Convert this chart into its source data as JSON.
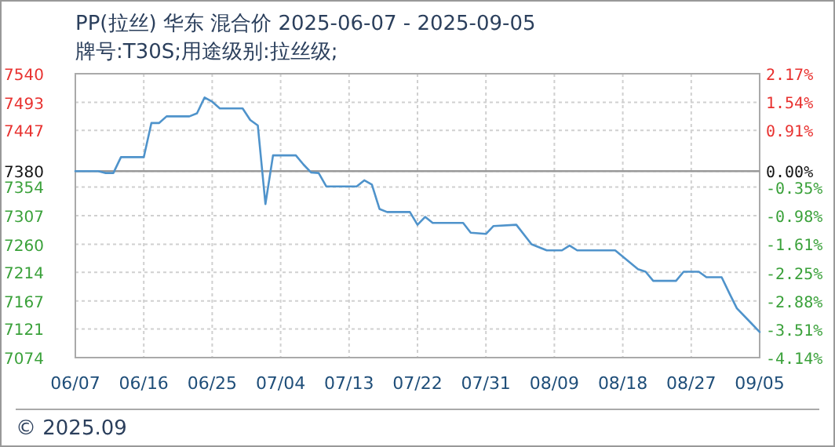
{
  "chart_data": {
    "type": "line",
    "title": "PP(拉丝) 华东 混合价 2025-06-07 - 2025-09-05",
    "subtitle": "牌号:T30S;用途级别:拉丝级;",
    "x": [
      "2025-06-07",
      "2025-06-10",
      "2025-06-11",
      "2025-06-12",
      "2025-06-13",
      "2025-06-16",
      "2025-06-17",
      "2025-06-18",
      "2025-06-19",
      "2025-06-22",
      "2025-06-23",
      "2025-06-24",
      "2025-06-25",
      "2025-06-26",
      "2025-06-29",
      "2025-06-30",
      "2025-07-01",
      "2025-07-02",
      "2025-07-03",
      "2025-07-06",
      "2025-07-07",
      "2025-07-08",
      "2025-07-09",
      "2025-07-10",
      "2025-07-14",
      "2025-07-15",
      "2025-07-16",
      "2025-07-17",
      "2025-07-18",
      "2025-07-21",
      "2025-07-22",
      "2025-07-23",
      "2025-07-24",
      "2025-07-28",
      "2025-07-29",
      "2025-07-31",
      "2025-08-01",
      "2025-08-04",
      "2025-08-06",
      "2025-08-08",
      "2025-08-10",
      "2025-08-11",
      "2025-08-12",
      "2025-08-17",
      "2025-08-20",
      "2025-08-21",
      "2025-08-22",
      "2025-08-25",
      "2025-08-26",
      "2025-08-28",
      "2025-08-29",
      "2025-08-31",
      "2025-09-01",
      "2025-09-02",
      "2025-09-04",
      "2025-09-05"
    ],
    "series": [
      {
        "color": "#4f93cb",
        "values": [
          7380,
          7380,
          7377,
          7377,
          7403,
          7403,
          7459,
          7459,
          7470,
          7470,
          7475,
          7501,
          7494,
          7483,
          7483,
          7464,
          7455,
          7326,
          7406,
          7406,
          7391,
          7378,
          7377,
          7355,
          7355,
          7365,
          7358,
          7318,
          7313,
          7313,
          7292,
          7305,
          7295,
          7295,
          7279,
          7277,
          7290,
          7292,
          7260,
          7250,
          7250,
          7258,
          7250,
          7250,
          7219,
          7215,
          7200,
          7200,
          7215,
          7215,
          7206,
          7206,
          7180,
          7155,
          7129,
          7116
        ]
      }
    ],
    "xlim": [
      "2025-06-07",
      "2025-09-05"
    ],
    "xticks": [
      {
        "value": "2025-06-07",
        "label": "06/07"
      },
      {
        "value": "2025-06-16",
        "label": "06/16"
      },
      {
        "value": "2025-06-25",
        "label": "06/25"
      },
      {
        "value": "2025-07-04",
        "label": "07/04"
      },
      {
        "value": "2025-07-13",
        "label": "07/13"
      },
      {
        "value": "2025-07-22",
        "label": "07/22"
      },
      {
        "value": "2025-07-31",
        "label": "07/31"
      },
      {
        "value": "2025-08-09",
        "label": "08/09"
      },
      {
        "value": "2025-08-18",
        "label": "08/18"
      },
      {
        "value": "2025-08-27",
        "label": "08/27"
      },
      {
        "value": "2025-09-05",
        "label": "09/05"
      }
    ],
    "ylim": [
      7074,
      7540
    ],
    "yticks": [
      7540,
      7493,
      7447,
      7380,
      7354,
      7307,
      7260,
      7214,
      7167,
      7121,
      7074
    ],
    "y2lim": [
      -4.14,
      2.17
    ],
    "y2ticks": [
      {
        "value": 2.17,
        "label": "2.17%"
      },
      {
        "value": 1.54,
        "label": "1.54%"
      },
      {
        "value": 0.91,
        "label": "0.91%"
      },
      {
        "value": 0,
        "label": "0.00%"
      },
      {
        "value": -0.35,
        "label": "-0.35%"
      },
      {
        "value": -0.98,
        "label": "-0.98%"
      },
      {
        "value": -1.61,
        "label": "-1.61%"
      },
      {
        "value": -2.25,
        "label": "-2.25%"
      },
      {
        "value": -2.88,
        "label": "-2.88%"
      },
      {
        "value": -3.51,
        "label": "-3.51%"
      },
      {
        "value": -4.14,
        "label": "-4.14%"
      }
    ],
    "ref_lines": [
      {
        "axis": "y",
        "value": 7380,
        "color": "#999999"
      }
    ],
    "grid": true,
    "marker": "none",
    "line_style": "solid",
    "annotations": [
      "© 2025.09"
    ]
  }
}
